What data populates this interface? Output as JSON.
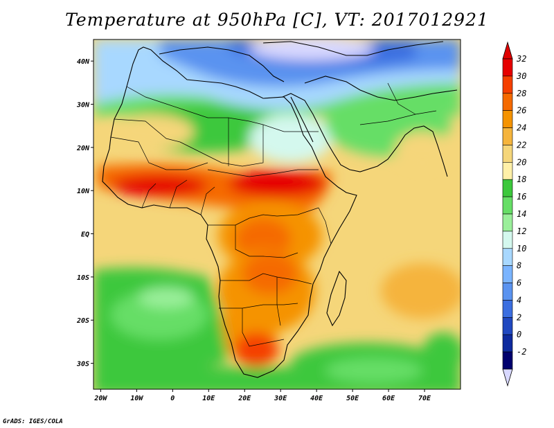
{
  "title": "Temperature at 950hPa [C], VT: 2017012921",
  "credit": "GrADS: IGES/COLA",
  "map": {
    "lon_labels": [
      "20W",
      "10W",
      "0",
      "10E",
      "20E",
      "30E",
      "40E",
      "50E",
      "60E",
      "70E"
    ],
    "lat_labels": [
      "40N",
      "30N",
      "20N",
      "10N",
      "EQ",
      "10S",
      "20S",
      "30S"
    ],
    "lon_values": [
      -20,
      -10,
      0,
      10,
      20,
      30,
      40,
      50,
      60,
      70
    ],
    "lat_values": [
      40,
      30,
      20,
      10,
      0,
      -10,
      -20,
      -30
    ],
    "lon_range": [
      -22,
      80
    ],
    "lat_range": [
      -36,
      45
    ]
  },
  "colorbar": {
    "labels": [
      "32",
      "30",
      "28",
      "26",
      "24",
      "22",
      "20",
      "18",
      "16",
      "14",
      "12",
      "10",
      "8",
      "6",
      "4",
      "2",
      "0",
      "-2"
    ],
    "colors": [
      "#e60000",
      "#f53f00",
      "#f56a00",
      "#f59300",
      "#f5b43c",
      "#f5d67a",
      "#fff0a8",
      "#3cc83c",
      "#66de66",
      "#9aef9a",
      "#d4f8ee",
      "#a8d8ff",
      "#7ab4ff",
      "#5a93f0",
      "#3b6ee0",
      "#2048c0",
      "#0e2a9e",
      "#00006e"
    ],
    "over_color": "#e00000",
    "under_color": "#d8d8ff"
  }
}
